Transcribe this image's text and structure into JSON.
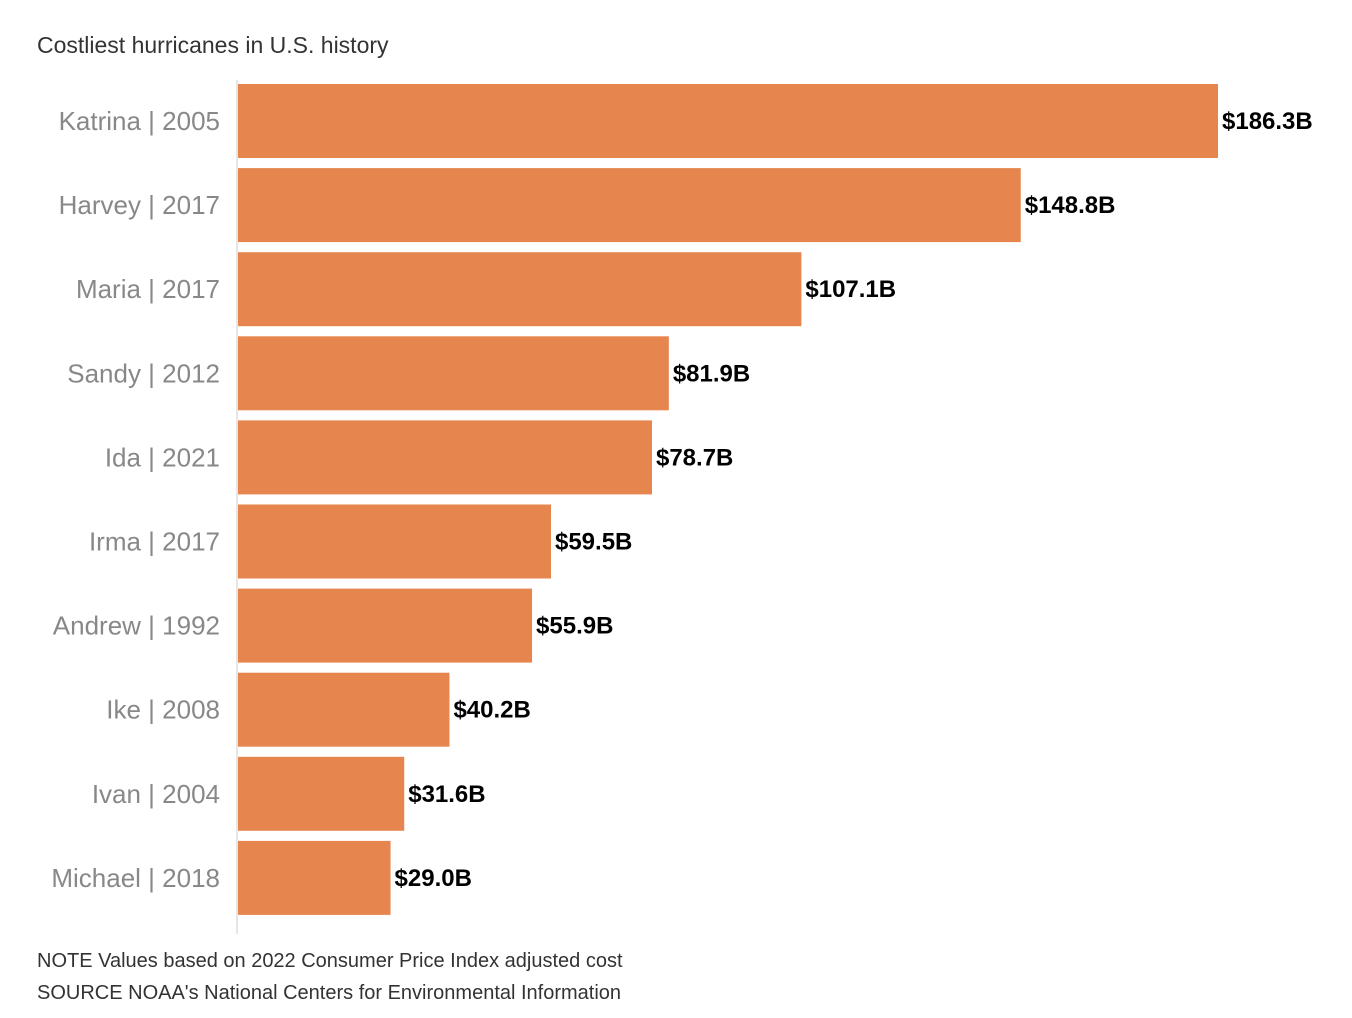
{
  "chart_data": {
    "type": "bar",
    "orientation": "horizontal",
    "title": "Costliest hurricanes in U.S. history",
    "categories": [
      "Katrina | 2005",
      "Harvey | 2017",
      "Maria | 2017",
      "Sandy | 2012",
      "Ida | 2021",
      "Irma | 2017",
      "Andrew | 1992",
      "Ike | 2008",
      "Ivan | 2004",
      "Michael | 2018"
    ],
    "values": [
      186.3,
      148.8,
      107.1,
      81.9,
      78.7,
      59.5,
      55.9,
      40.2,
      31.6,
      29.0
    ],
    "value_labels": [
      "$186.3B",
      "$148.8B",
      "$107.1B",
      "$81.9B",
      "$78.7B",
      "$59.5B",
      "$55.9B",
      "$40.2B",
      "$31.6B",
      "$29.0B"
    ],
    "unit": "billion USD",
    "bar_color": "#e6864e",
    "xlim": [
      0,
      186.3
    ],
    "grid": false,
    "legend": "none"
  },
  "footnotes": {
    "note": "NOTE Values based on 2022 Consumer Price Index adjusted cost",
    "source": "SOURCE NOAA's National Centers for Environmental Information"
  }
}
